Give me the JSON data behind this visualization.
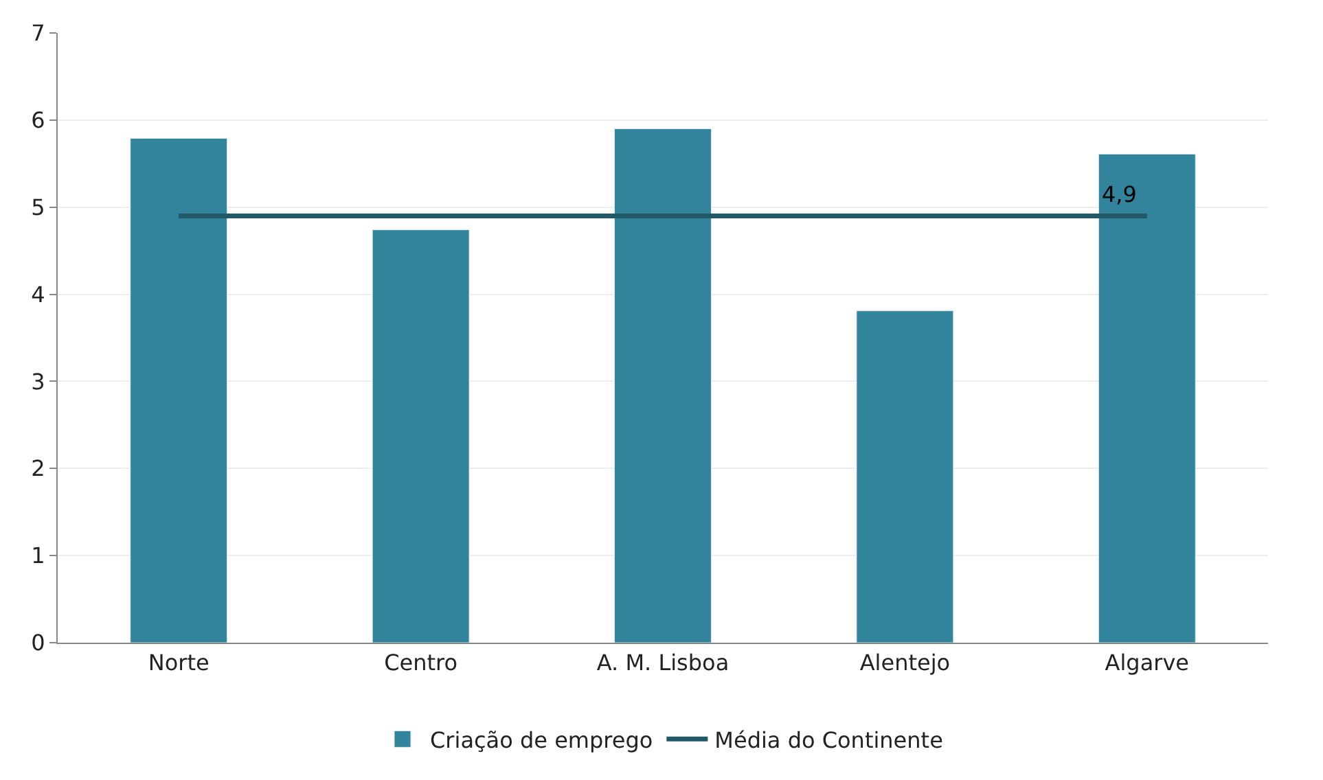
{
  "chart_data": {
    "type": "bar",
    "categories": [
      "Norte",
      "Centro",
      "A. M. Lisboa",
      "Alentejo",
      "Algarve"
    ],
    "series": [
      {
        "name": "Criação de emprego",
        "color": "#31849b",
        "values": [
          5.79,
          4.74,
          5.9,
          3.81,
          5.61
        ]
      },
      {
        "name": "Média do Continente",
        "type": "line",
        "color": "#215968",
        "values": [
          4.9,
          4.9,
          4.9,
          4.9,
          4.9
        ],
        "value_labels": [
          null,
          null,
          null,
          null,
          "4,9"
        ],
        "marker": "none",
        "line_style": "solid"
      }
    ],
    "ylim": [
      0,
      7
    ],
    "yticks": [
      0,
      1,
      2,
      3,
      4,
      5,
      6,
      7
    ],
    "grid": "y",
    "legend": "bottom"
  }
}
